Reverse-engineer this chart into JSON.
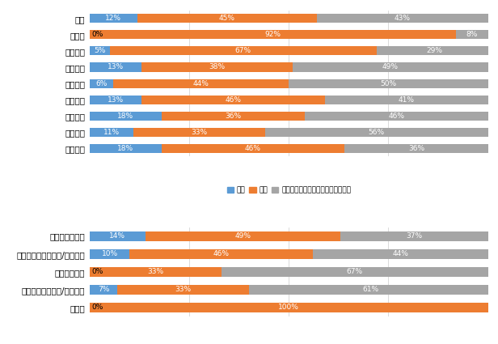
{
  "chart1": {
    "categories": [
      "全国",
      "北海道",
      "東北地方",
      "関東地方",
      "中部地方",
      "近畿地方",
      "中国地方",
      "四国地方",
      "九州地方"
    ],
    "aru": [
      12,
      0,
      5,
      13,
      6,
      13,
      18,
      11,
      18
    ],
    "nai": [
      45,
      92,
      67,
      38,
      44,
      46,
      36,
      33,
      46
    ],
    "shizen": [
      43,
      8,
      29,
      49,
      50,
      41,
      46,
      56,
      36
    ]
  },
  "chart2": {
    "categories": [
      "持ち家・戸建て",
      "持ち家・マンション/アパート",
      "賃貸・戸建て",
      "賃貸・マンション/アパート",
      "その他"
    ],
    "aru": [
      14,
      10,
      0,
      7,
      0
    ],
    "nai": [
      49,
      46,
      33,
      33,
      100
    ],
    "shizen": [
      37,
      44,
      67,
      61,
      0
    ]
  },
  "color_aru": "#5B9BD5",
  "color_nai": "#ED7D31",
  "color_shizen": "#A5A5A5",
  "legend_labels": [
    "ある",
    "ない",
    "自然災害の被害にあったことがない"
  ],
  "bar_height": 0.55,
  "fontsize_label": 7.5,
  "fontsize_pct": 6.5,
  "background": "#FFFFFF"
}
